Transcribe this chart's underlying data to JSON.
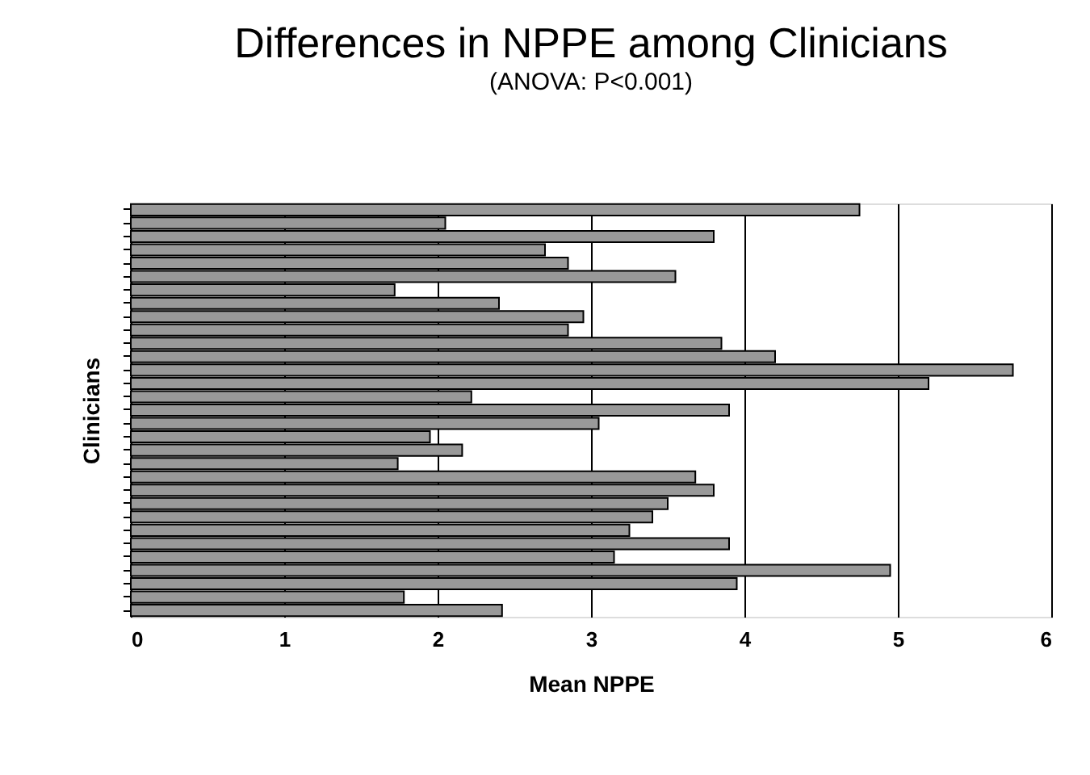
{
  "chart_data": {
    "type": "bar",
    "orientation": "horizontal",
    "title": "Differences in NPPE among Clinicians",
    "subtitle": "(ANOVA: P<0.001)",
    "xlabel": "Mean NPPE",
    "ylabel": "Clinicians",
    "categories": [
      null,
      null,
      null,
      null,
      null,
      null,
      null,
      null,
      null,
      null,
      null,
      null,
      null,
      null,
      null,
      null,
      null,
      null,
      null,
      null,
      null,
      null,
      null,
      null,
      null,
      null,
      null,
      null,
      null,
      null,
      null
    ],
    "values": [
      4.75,
      2.05,
      3.8,
      2.7,
      2.85,
      3.55,
      1.72,
      2.4,
      2.95,
      2.85,
      3.85,
      4.2,
      5.75,
      5.2,
      2.22,
      3.9,
      3.05,
      1.95,
      2.16,
      1.74,
      3.68,
      3.8,
      3.5,
      3.4,
      3.25,
      3.9,
      3.15,
      4.95,
      3.95,
      1.78,
      2.42
    ],
    "color": "#999999",
    "xlim": [
      0,
      6
    ],
    "xticks": [
      0,
      1,
      2,
      3,
      4,
      5,
      6
    ],
    "grid": "x"
  }
}
